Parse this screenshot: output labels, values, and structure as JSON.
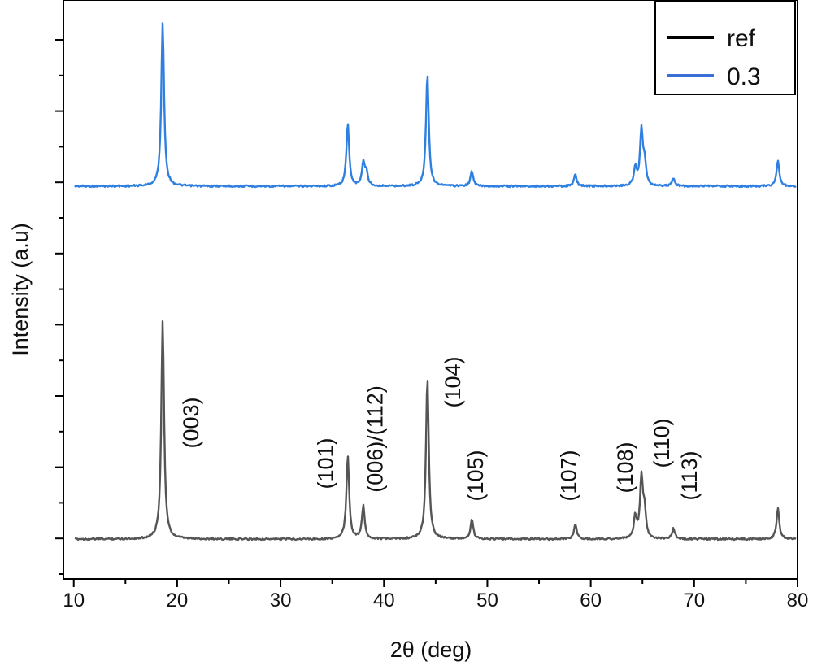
{
  "chart_data": {
    "type": "line",
    "xlabel": "2θ (deg)",
    "ylabel": "Intensity (a.u)",
    "xlim": [
      9,
      80
    ],
    "x_ticks": [
      "10",
      "20",
      "30",
      "40",
      "50",
      "60",
      "70",
      "80"
    ],
    "y_ticks_labeled": false,
    "grid": false,
    "legend_position": "top-right",
    "legend": [
      {
        "name": "ref",
        "color": "#000000"
      },
      {
        "name": "0.3",
        "color": "#3a6fd8"
      }
    ],
    "series": [
      {
        "name": "0.3",
        "color": "#2f7fe0",
        "baseline": 0.0,
        "peaks": [
          {
            "x": 18.6,
            "h": 1.0
          },
          {
            "x": 36.5,
            "h": 0.38
          },
          {
            "x": 38.0,
            "h": 0.14
          },
          {
            "x": 38.3,
            "h": 0.08
          },
          {
            "x": 44.2,
            "h": 0.69
          },
          {
            "x": 48.5,
            "h": 0.09
          },
          {
            "x": 58.5,
            "h": 0.07
          },
          {
            "x": 64.3,
            "h": 0.11
          },
          {
            "x": 64.9,
            "h": 0.34
          },
          {
            "x": 65.2,
            "h": 0.14
          },
          {
            "x": 68.0,
            "h": 0.05
          },
          {
            "x": 78.1,
            "h": 0.16
          }
        ]
      },
      {
        "name": "ref",
        "color": "#555555",
        "baseline": 0.0,
        "peaks": [
          {
            "x": 18.6,
            "h": 1.0
          },
          {
            "x": 36.5,
            "h": 0.38
          },
          {
            "x": 38.0,
            "h": 0.15
          },
          {
            "x": 44.2,
            "h": 0.74
          },
          {
            "x": 48.5,
            "h": 0.09
          },
          {
            "x": 58.5,
            "h": 0.07
          },
          {
            "x": 64.3,
            "h": 0.1
          },
          {
            "x": 64.9,
            "h": 0.28
          },
          {
            "x": 65.2,
            "h": 0.12
          },
          {
            "x": 68.0,
            "h": 0.05
          },
          {
            "x": 78.1,
            "h": 0.14
          }
        ]
      }
    ],
    "annotations": [
      {
        "text": "(003)",
        "x": 21.5
      },
      {
        "text": "(101)",
        "x": 34.5
      },
      {
        "text": "(006)/(112)",
        "x": 39.3
      },
      {
        "text": "(104)",
        "x": 46.8
      },
      {
        "text": "(105)",
        "x": 49.0
      },
      {
        "text": "(107)",
        "x": 58.0
      },
      {
        "text": "(108)",
        "x": 63.5
      },
      {
        "text": "(110)",
        "x": 67.0
      },
      {
        "text": "(113)",
        "x": 69.7
      }
    ]
  }
}
